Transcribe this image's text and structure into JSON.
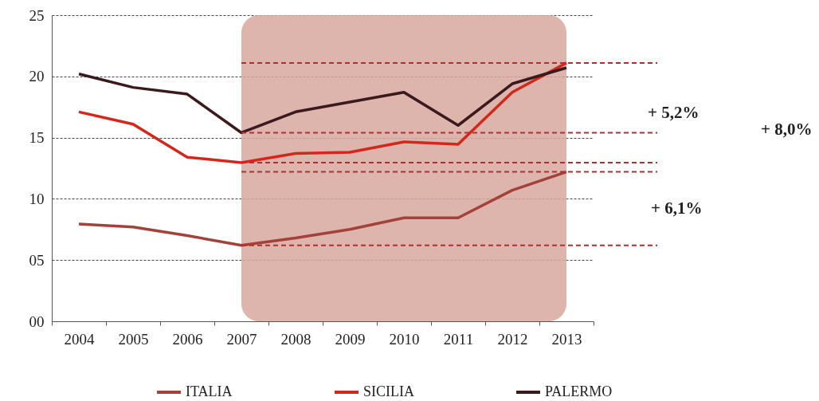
{
  "chart_data": {
    "type": "line",
    "categories": [
      "2004",
      "2005",
      "2006",
      "2007",
      "2008",
      "2009",
      "2010",
      "2011",
      "2012",
      "2013"
    ],
    "series": [
      {
        "name": "ITALIA",
        "color": "#a3423a",
        "values": [
          7.95,
          7.7,
          7.0,
          6.2,
          6.8,
          7.5,
          8.45,
          8.45,
          10.7,
          12.2
        ]
      },
      {
        "name": "SICILIA",
        "color": "#d2281c",
        "values": [
          17.1,
          16.1,
          13.4,
          12.95,
          13.7,
          13.8,
          14.65,
          14.45,
          18.7,
          21.1
        ]
      },
      {
        "name": "PALERMO",
        "color": "#3a1a1c",
        "values": [
          20.2,
          19.1,
          18.55,
          15.4,
          17.1,
          17.9,
          18.7,
          16.0,
          19.4,
          20.7
        ]
      }
    ],
    "ylim": [
      0,
      25
    ],
    "yticks": [
      {
        "value": 0,
        "label": "00"
      },
      {
        "value": 5,
        "label": "05"
      },
      10,
      15,
      20,
      25
    ],
    "grid": "y",
    "legend": "bottom",
    "marker": "none",
    "line_style": "solid",
    "bands": [
      {
        "axis": "x",
        "from": "2007",
        "to": "2013",
        "color": "#d8a89e"
      }
    ],
    "ref_lines": [
      {
        "axis": "y",
        "value": 21.1,
        "color": "#b03030",
        "line_style": "dashed"
      },
      {
        "axis": "y",
        "value": 15.4,
        "color": "#b03030",
        "line_style": "dashed"
      },
      {
        "axis": "y",
        "value": 12.95,
        "color": "#b03030",
        "line_style": "dashed"
      },
      {
        "axis": "y",
        "value": 12.2,
        "color": "#b03030",
        "line_style": "dashed"
      },
      {
        "axis": "y",
        "value": 6.2,
        "color": "#b03030",
        "line_style": "dashed"
      }
    ],
    "annotations": [
      "+ 5,2%",
      "+ 8,0%",
      "+ 6,1%"
    ]
  }
}
